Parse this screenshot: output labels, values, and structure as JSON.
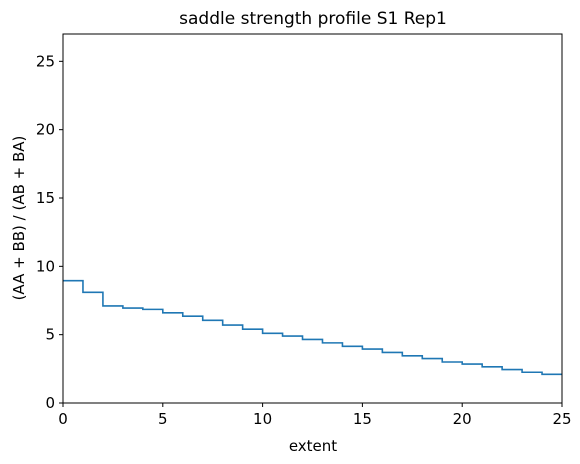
{
  "chart_data": {
    "type": "line",
    "title": "saddle strength profile S1 Rep1",
    "xlabel": "extent",
    "ylabel": "(AA + BB) / (AB + BA)",
    "xlim": [
      0,
      25
    ],
    "ylim": [
      0,
      27
    ],
    "xticks": [
      0,
      5,
      10,
      15,
      20,
      25
    ],
    "yticks": [
      0,
      5,
      10,
      15,
      20,
      25
    ],
    "grid": false,
    "step": "post",
    "series": [
      {
        "color": "#1f77b4",
        "x": [
          0,
          1,
          2,
          3,
          4,
          5,
          6,
          7,
          8,
          9,
          10,
          11,
          12,
          13,
          14,
          15,
          16,
          17,
          18,
          19,
          20,
          21,
          22,
          23,
          24,
          25
        ],
        "y": [
          8.95,
          8.1,
          7.1,
          6.95,
          6.85,
          6.6,
          6.35,
          6.05,
          5.7,
          5.4,
          5.1,
          4.9,
          4.65,
          4.4,
          4.15,
          3.95,
          3.7,
          3.45,
          3.25,
          3.0,
          2.85,
          2.65,
          2.45,
          2.25,
          2.1,
          2.1
        ]
      }
    ]
  }
}
